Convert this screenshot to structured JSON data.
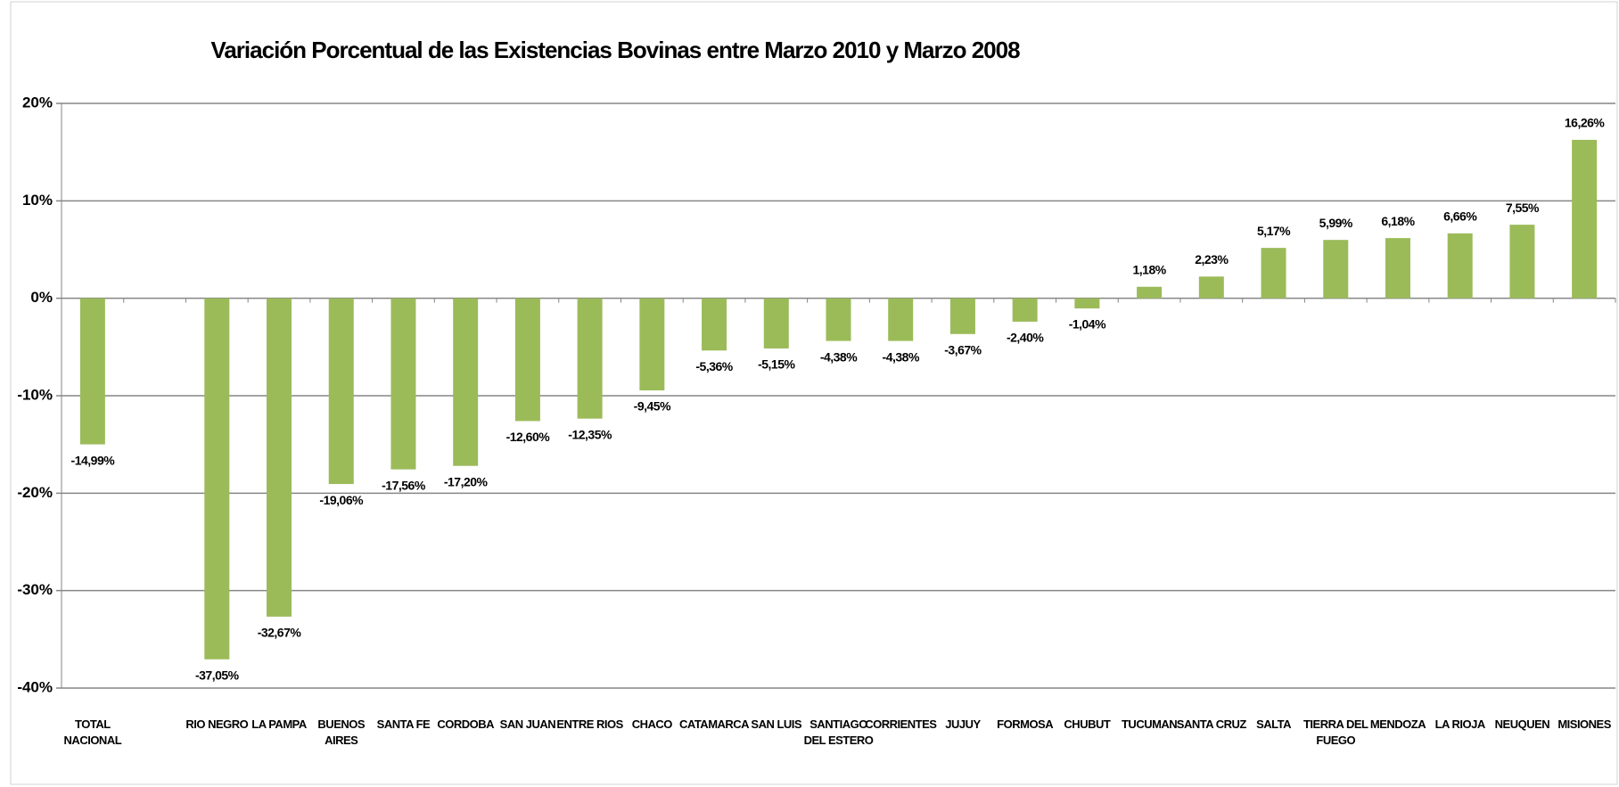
{
  "chart_data": {
    "type": "bar",
    "title": "Variación Porcentual de las Existencias Bovinas entre Marzo 2010 y Marzo 2008",
    "categories": [
      "TOTAL\nNACIONAL",
      null,
      "RIO NEGRO",
      "LA PAMPA",
      "BUENOS\nAIRES",
      "SANTA FE",
      "CORDOBA",
      "SAN JUAN",
      "ENTRE RIOS",
      "CHACO",
      "CATAMARCA",
      "SAN LUIS",
      "SANTIAGO\nDEL ESTERO",
      "CORRIENTES",
      "JUJUY",
      "FORMOSA",
      "CHUBUT",
      "TUCUMAN",
      "SANTA CRUZ",
      "SALTA",
      "TIERRA DEL\nFUEGO",
      "MENDOZA",
      "LA RIOJA",
      "NEUQUEN",
      "MISIONES"
    ],
    "values": [
      -14.99,
      null,
      -37.05,
      -32.67,
      -19.06,
      -17.56,
      -17.2,
      -12.6,
      -12.35,
      -9.45,
      -5.36,
      -5.15,
      -4.38,
      -4.38,
      -3.67,
      -2.4,
      -1.04,
      1.18,
      2.23,
      5.17,
      5.99,
      6.18,
      6.66,
      7.55,
      16.26
    ],
    "value_labels": [
      "-14,99%",
      null,
      "-37,05%",
      "-32,67%",
      "-19,06%",
      "-17,56%",
      "-17,20%",
      "-12,60%",
      "-12,35%",
      "-9,45%",
      "-5,36%",
      "-5,15%",
      "-4,38%",
      "-4,38%",
      "-3,67%",
      "-2,40%",
      "-1,04%",
      "1,18%",
      "2,23%",
      "5,17%",
      "5,99%",
      "6,18%",
      "6,66%",
      "7,55%",
      "16,26%"
    ],
    "color": "#9bbb59",
    "ylim": [
      -40,
      20
    ],
    "yticks": [
      {
        "value": -40,
        "label": "-40%"
      },
      {
        "value": -30,
        "label": "-30%"
      },
      {
        "value": -20,
        "label": "-20%"
      },
      {
        "value": -10,
        "label": "-10%"
      },
      {
        "value": 0,
        "label": "0%"
      },
      {
        "value": 10,
        "label": "10%"
      },
      {
        "value": 20,
        "label": "20%"
      }
    ],
    "grid": true
  }
}
